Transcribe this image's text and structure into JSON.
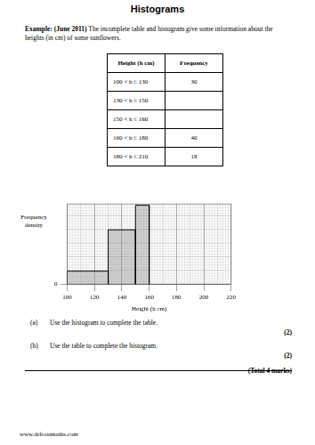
{
  "header": {
    "title": "Histograms"
  },
  "intro": {
    "label": "Example: (June 2011)",
    "text": "The incomplete table and histogram give some information about the heights (in cm) of some sunflowers."
  },
  "table": {
    "columns": [
      "Height (h cm)",
      "Frequency"
    ],
    "rows": [
      [
        "100 < h ≤ 130",
        30
      ],
      [
        "130 < h ≤ 150",
        null
      ],
      [
        "150 < h ≤ 160",
        null
      ],
      [
        "160 < h ≤ 180",
        40
      ],
      [
        "180 < h ≤ 210",
        18
      ]
    ]
  },
  "chart_data": {
    "type": "histogram",
    "bins": [
      100,
      130,
      150,
      160
    ],
    "values": [
      1,
      4.2,
      6.1
    ],
    "x_label": "Height (h cm)",
    "y_label": "Frequency density",
    "color": "#9a9a9a",
    "xlim": [
      100,
      220
    ],
    "xticks": [
      100,
      120,
      140,
      160,
      180,
      200,
      220
    ],
    "ylim": [
      0,
      6.2
    ],
    "yticks": [
      0
    ],
    "grid": true
  },
  "questions": [
    {
      "label": "(a)",
      "text": "Use the histogram to complete the table.",
      "marks": "(2)"
    },
    {
      "label": "(b)",
      "text": "Use the table to complete the histogram.",
      "marks": "(2)"
    }
  ],
  "total": "(Total 4 marks)",
  "footer": "www.drfrostmaths.com"
}
